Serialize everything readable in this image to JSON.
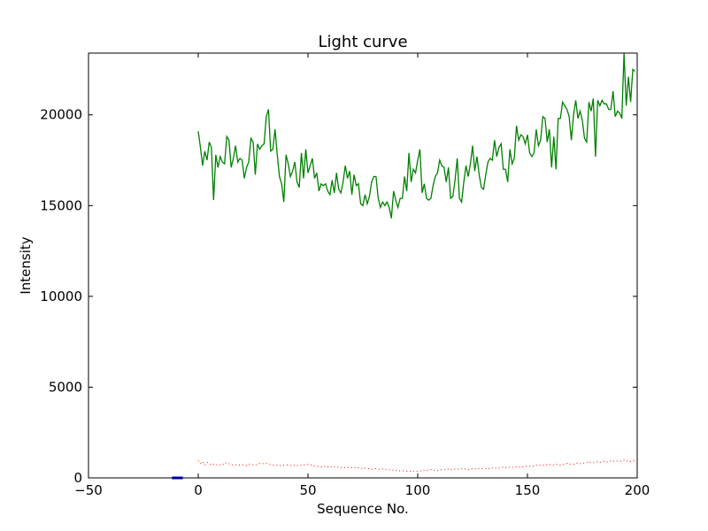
{
  "chart_data": {
    "type": "line",
    "title": "Light curve",
    "xlabel": "Sequence No.",
    "ylabel": "Intensity",
    "xlim": [
      -50,
      200
    ],
    "ylim": [
      0,
      23400
    ],
    "xticks": [
      -50,
      0,
      50,
      100,
      150,
      200
    ],
    "yticks": [
      0,
      5000,
      10000,
      15000,
      20000
    ],
    "grid": false,
    "legend": "none",
    "series": [
      {
        "color": "#008000",
        "style": "solid",
        "x_start": 0,
        "x_step": 1,
        "values": [
          19100,
          18200,
          17200,
          18000,
          17500,
          18500,
          18200,
          15300,
          17800,
          17100,
          17700,
          17400,
          17300,
          18800,
          18600,
          17100,
          17600,
          18300,
          17400,
          17600,
          17500,
          16500,
          17100,
          17400,
          18700,
          18500,
          16700,
          18400,
          18100,
          18300,
          18400,
          19900,
          20300,
          18000,
          18100,
          19200,
          17800,
          16600,
          16200,
          15200,
          17800,
          17300,
          16600,
          16900,
          17400,
          16300,
          16000,
          17900,
          16500,
          18100,
          16800,
          17200,
          17600,
          16500,
          16800,
          15800,
          16200,
          16100,
          16200,
          15800,
          15600,
          16400,
          15700,
          16800,
          15900,
          15700,
          16300,
          17200,
          16500,
          16900,
          15600,
          16700,
          16100,
          16200,
          15100,
          15000,
          15600,
          15100,
          15500,
          16300,
          16600,
          16600,
          15400,
          14900,
          15200,
          15000,
          15200,
          14900,
          14300,
          15800,
          15300,
          14900,
          15400,
          15400,
          16600,
          15800,
          17900,
          16300,
          17000,
          16800,
          17500,
          18100,
          15700,
          16200,
          15400,
          15300,
          15400,
          16100,
          16600,
          16800,
          17500,
          17200,
          17100,
          16300,
          17100,
          15400,
          15500,
          16400,
          17600,
          15400,
          15200,
          16300,
          17200,
          16600,
          17300,
          18300,
          16900,
          17700,
          16700,
          16000,
          15900,
          16700,
          17400,
          17600,
          17500,
          18600,
          17700,
          18200,
          18400,
          17000,
          17000,
          16300,
          18100,
          17300,
          17600,
          19400,
          18600,
          18900,
          18800,
          18400,
          18900,
          17900,
          17700,
          17900,
          19200,
          18300,
          18600,
          19900,
          19800,
          18500,
          19200,
          17100,
          18800,
          17000,
          19800,
          19800,
          20700,
          20500,
          20300,
          19900,
          18600,
          20000,
          20800,
          19800,
          20200,
          19700,
          18700,
          18500,
          20700,
          20200,
          20900,
          17700,
          20800,
          20500,
          20800,
          20600,
          20600,
          20300,
          20300,
          21300,
          19900,
          20200,
          20100,
          19800,
          23400,
          20500,
          22100,
          20700,
          22500,
          22400
        ]
      },
      {
        "color": "#ff0000",
        "style": "dotted",
        "x_start": 0,
        "x_step": 1,
        "values": [
          950,
          800,
          900,
          700,
          850,
          820,
          700,
          760,
          740,
          700,
          720,
          690,
          850,
          800,
          780,
          760,
          700,
          720,
          740,
          690,
          720,
          700,
          680,
          760,
          740,
          720,
          700,
          760,
          800,
          780,
          790,
          800,
          760,
          740,
          700,
          720,
          700,
          660,
          700,
          690,
          700,
          720,
          680,
          660,
          700,
          680,
          660,
          720,
          700,
          760,
          740,
          720,
          680,
          660,
          640,
          620,
          600,
          660,
          620,
          600,
          640,
          560,
          600,
          620,
          580,
          560,
          600,
          560,
          580,
          540,
          560,
          600,
          540,
          560,
          520,
          500,
          540,
          520,
          500,
          480,
          500,
          520,
          480,
          460,
          500,
          480,
          460,
          440,
          460,
          420,
          400,
          420,
          380,
          400,
          380,
          360,
          380,
          350,
          380,
          340,
          360,
          380,
          400,
          420,
          400,
          440,
          460,
          420,
          440,
          400,
          420,
          460,
          440,
          480,
          500,
          460,
          440,
          480,
          460,
          500,
          520,
          480,
          500,
          460,
          480,
          520,
          500,
          480,
          520,
          500,
          540,
          520,
          480,
          560,
          540,
          520,
          560,
          540,
          580,
          600,
          560,
          580,
          600,
          560,
          620,
          600,
          580,
          640,
          600,
          620,
          660,
          640,
          620,
          660,
          700,
          680,
          720,
          700,
          680,
          760,
          740,
          720,
          700,
          760,
          740,
          700,
          720,
          760,
          800,
          740,
          780,
          760,
          800,
          820,
          780,
          840,
          800,
          860,
          820,
          880,
          840,
          860,
          900,
          860,
          880,
          920,
          880,
          900,
          940,
          900,
          960,
          920,
          900,
          940,
          980,
          920,
          960,
          900,
          940,
          960,
          1000
        ]
      },
      {
        "color": "#0000ff",
        "style": "solid",
        "x": [
          -12,
          -7
        ],
        "values": [
          0,
          0
        ]
      }
    ]
  }
}
